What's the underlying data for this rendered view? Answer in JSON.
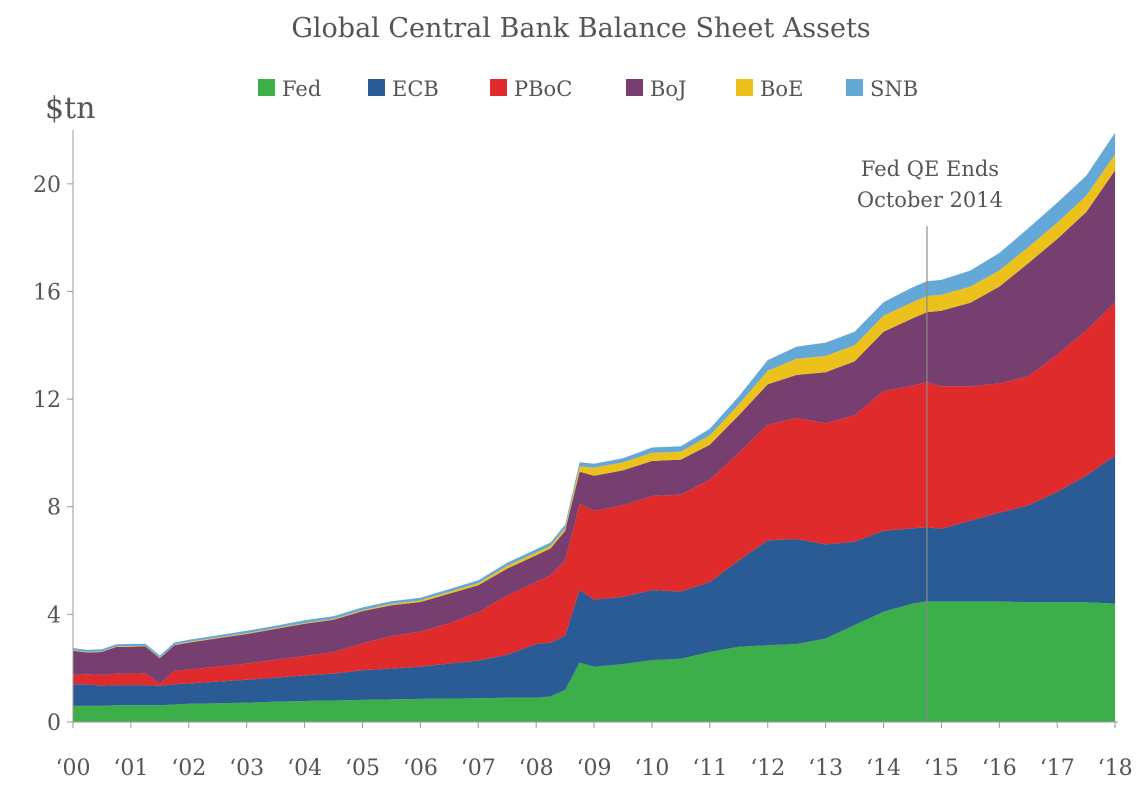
{
  "chart_data": {
    "type": "area",
    "stacked": true,
    "title": "Global Central Bank Balance Sheet Assets",
    "ylabel": "$tn",
    "xlabel": "",
    "ylim": [
      0,
      22
    ],
    "xlim": [
      2000,
      2018.05
    ],
    "y_ticks": [
      0,
      4,
      8,
      12,
      16,
      20
    ],
    "y_tick_labels": [
      "0",
      "4",
      "8",
      "12",
      "16",
      "20"
    ],
    "x_ticks": [
      2000,
      2001,
      2002,
      2003,
      2004,
      2005,
      2006,
      2007,
      2008,
      2009,
      2010,
      2011,
      2012,
      2013,
      2014,
      2015,
      2016,
      2017,
      2018
    ],
    "x_tick_labels": [
      "‘00",
      "‘01",
      "‘02",
      "‘03",
      "‘04",
      "‘05",
      "‘06",
      "‘07",
      "‘08",
      "‘09",
      "‘10",
      "‘11",
      "‘12",
      "‘13",
      "‘14",
      "‘15",
      "‘16",
      "‘17",
      "‘18"
    ],
    "grid": false,
    "legend_position": "top",
    "x": [
      2000,
      2000.25,
      2000.5,
      2000.75,
      2001,
      2001.25,
      2001.5,
      2001.75,
      2002,
      2002.5,
      2003,
      2003.5,
      2004,
      2004.5,
      2005,
      2005.5,
      2006,
      2006.5,
      2007,
      2007.5,
      2008,
      2008.25,
      2008.5,
      2008.75,
      2009,
      2009.5,
      2010,
      2010.5,
      2011,
      2011.5,
      2012,
      2012.5,
      2013,
      2013.5,
      2014,
      2014.5,
      2014.75,
      2015,
      2015.5,
      2016,
      2016.5,
      2017,
      2017.5,
      2018
    ],
    "series": [
      {
        "name": "Fed",
        "color": "#3caf4a",
        "values": [
          0.6,
          0.6,
          0.6,
          0.62,
          0.62,
          0.62,
          0.62,
          0.65,
          0.68,
          0.7,
          0.72,
          0.75,
          0.78,
          0.8,
          0.82,
          0.84,
          0.86,
          0.87,
          0.88,
          0.9,
          0.9,
          0.95,
          1.2,
          2.2,
          2.05,
          2.15,
          2.3,
          2.35,
          2.6,
          2.8,
          2.85,
          2.9,
          3.1,
          3.6,
          4.1,
          4.4,
          4.48,
          4.48,
          4.48,
          4.48,
          4.45,
          4.45,
          4.45,
          4.4
        ]
      },
      {
        "name": "ECB",
        "color": "#2a5b94",
        "values": [
          0.8,
          0.8,
          0.75,
          0.75,
          0.75,
          0.75,
          0.72,
          0.75,
          0.75,
          0.8,
          0.85,
          0.9,
          0.95,
          1.0,
          1.1,
          1.15,
          1.2,
          1.3,
          1.4,
          1.6,
          2.0,
          2.0,
          2.0,
          2.7,
          2.5,
          2.5,
          2.6,
          2.5,
          2.6,
          3.2,
          3.9,
          3.9,
          3.5,
          3.1,
          3.0,
          2.8,
          2.75,
          2.7,
          3.0,
          3.3,
          3.6,
          4.1,
          4.7,
          5.5
        ]
      },
      {
        "name": "PBoC",
        "color": "#e02b2c",
        "values": [
          0.35,
          0.38,
          0.4,
          0.42,
          0.43,
          0.44,
          0.08,
          0.5,
          0.52,
          0.56,
          0.6,
          0.66,
          0.72,
          0.8,
          1.0,
          1.2,
          1.3,
          1.5,
          1.8,
          2.2,
          2.3,
          2.5,
          2.8,
          3.2,
          3.3,
          3.4,
          3.5,
          3.6,
          3.8,
          4.0,
          4.3,
          4.5,
          4.5,
          4.7,
          5.2,
          5.3,
          5.4,
          5.3,
          5.0,
          4.8,
          4.8,
          5.1,
          5.4,
          5.7
        ]
      },
      {
        "name": "BoJ",
        "color": "#763f70",
        "values": [
          0.9,
          0.8,
          0.85,
          1.0,
          1.0,
          1.0,
          0.95,
          0.95,
          1.0,
          1.05,
          1.1,
          1.15,
          1.2,
          1.2,
          1.2,
          1.15,
          1.1,
          1.1,
          1.0,
          1.0,
          1.0,
          1.0,
          1.1,
          1.2,
          1.3,
          1.3,
          1.3,
          1.3,
          1.3,
          1.4,
          1.5,
          1.6,
          1.9,
          2.0,
          2.2,
          2.5,
          2.6,
          2.8,
          3.1,
          3.6,
          4.2,
          4.3,
          4.4,
          4.9
        ]
      },
      {
        "name": "BoE",
        "color": "#ecc11c",
        "values": [
          0.02,
          0.02,
          0.02,
          0.02,
          0.02,
          0.02,
          0.02,
          0.02,
          0.03,
          0.03,
          0.03,
          0.03,
          0.03,
          0.03,
          0.04,
          0.05,
          0.06,
          0.07,
          0.08,
          0.1,
          0.1,
          0.1,
          0.1,
          0.2,
          0.3,
          0.3,
          0.3,
          0.3,
          0.35,
          0.4,
          0.5,
          0.6,
          0.6,
          0.6,
          0.6,
          0.6,
          0.6,
          0.6,
          0.6,
          0.6,
          0.6,
          0.6,
          0.6,
          0.6
        ]
      },
      {
        "name": "SNB",
        "color": "#64a8d8",
        "values": [
          0.08,
          0.08,
          0.08,
          0.08,
          0.08,
          0.08,
          0.08,
          0.08,
          0.08,
          0.08,
          0.09,
          0.09,
          0.1,
          0.1,
          0.1,
          0.1,
          0.1,
          0.1,
          0.11,
          0.12,
          0.12,
          0.12,
          0.13,
          0.15,
          0.15,
          0.15,
          0.2,
          0.2,
          0.25,
          0.3,
          0.4,
          0.45,
          0.5,
          0.5,
          0.5,
          0.55,
          0.55,
          0.55,
          0.6,
          0.65,
          0.7,
          0.75,
          0.75,
          0.8
        ]
      }
    ],
    "annotations": [
      {
        "x": 2014.75,
        "lines": [
          "Fed QE Ends",
          "October 2014"
        ]
      }
    ]
  }
}
